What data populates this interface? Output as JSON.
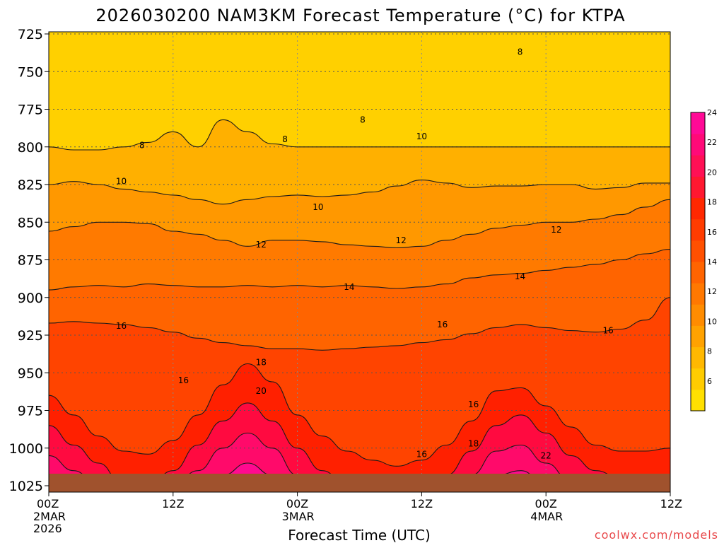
{
  "chart_data": {
    "type": "heatmap",
    "title": "2026030200 NAM3KM Forecast Temperature (°C) for KTPA",
    "xlabel": "Forecast Time (UTC)",
    "ylabel": "",
    "x_ticks": [
      {
        "hour": 0,
        "label": "00Z",
        "sub": [
          "2MAR",
          "2026"
        ]
      },
      {
        "hour": 12,
        "label": "12Z",
        "sub": []
      },
      {
        "hour": 24,
        "label": "00Z",
        "sub": [
          "3MAR"
        ]
      },
      {
        "hour": 36,
        "label": "12Z",
        "sub": []
      },
      {
        "hour": 48,
        "label": "00Z",
        "sub": [
          "4MAR"
        ]
      },
      {
        "hour": 60,
        "label": "12Z",
        "sub": []
      }
    ],
    "xlim": [
      0,
      60
    ],
    "y_levels": [
      725,
      750,
      775,
      800,
      825,
      850,
      875,
      900,
      925,
      950,
      975,
      1000,
      1025
    ],
    "ylim_hpa": [
      725,
      1025
    ],
    "grid": "dotted",
    "colorbar": {
      "ticks": [
        6,
        8,
        10,
        12,
        14,
        16,
        18,
        20,
        22,
        24
      ],
      "colors": [
        "#ffe000",
        "#ffcc00",
        "#ffb800",
        "#ffa200",
        "#ff8c00",
        "#ff7800",
        "#ff6400",
        "#ff5000",
        "#ff3c00",
        "#ff2800",
        "#ff1830",
        "#ff1055",
        "#ff0a78",
        "#ff0a96"
      ]
    },
    "contours": [
      {
        "value": 8,
        "label": "8",
        "pressure": [
          800,
          802,
          802,
          800,
          797,
          790,
          800,
          782,
          790,
          798,
          800,
          800,
          800,
          800,
          800,
          800,
          800,
          800,
          800,
          800,
          800,
          800,
          800,
          800,
          800,
          800
        ]
      },
      {
        "value": 10,
        "label": "10",
        "pressure": [
          825,
          823,
          825,
          828,
          830,
          832,
          835,
          838,
          835,
          833,
          832,
          833,
          832,
          830,
          826,
          822,
          824,
          827,
          826,
          826,
          825,
          825,
          828,
          827,
          824,
          824
        ]
      },
      {
        "value": 12,
        "label": "12",
        "pressure": [
          856,
          853,
          850,
          850,
          851,
          856,
          858,
          862,
          866,
          862,
          862,
          863,
          865,
          866,
          867,
          866,
          862,
          858,
          854,
          852,
          850,
          850,
          848,
          845,
          840,
          835
        ]
      },
      {
        "value": 14,
        "label": "14",
        "pressure": [
          895,
          893,
          892,
          893,
          891,
          892,
          893,
          893,
          892,
          893,
          892,
          893,
          892,
          893,
          894,
          893,
          891,
          887,
          885,
          884,
          882,
          880,
          878,
          875,
          871,
          868
        ]
      },
      {
        "value": 16,
        "label": "16",
        "pressure": [
          917,
          916,
          917,
          918,
          920,
          923,
          927,
          930,
          932,
          934,
          934,
          935,
          934,
          933,
          932,
          930,
          928,
          924,
          920,
          918,
          920,
          922,
          923,
          921,
          915,
          900
        ]
      },
      {
        "value": 18,
        "label": "18",
        "pressure": [
          965,
          978,
          992,
          1002,
          1004,
          995,
          978,
          958,
          944,
          956,
          978,
          992,
          1002,
          1008,
          1012,
          1008,
          998,
          982,
          962,
          960,
          972,
          986,
          998,
          1002,
          1002,
          1000
        ]
      },
      {
        "value": 20,
        "label": "20",
        "pressure": [
          985,
          998,
          1010,
          1025,
          1025,
          1015,
          998,
          982,
          970,
          982,
          1000,
          1015,
          1025,
          1025,
          1025,
          1025,
          1018,
          1002,
          985,
          978,
          990,
          1005,
          1015,
          1020,
          1020,
          1018
        ]
      },
      {
        "value": 22,
        "label": "22",
        "pressure": [
          1005,
          1015,
          1025,
          1025,
          1025,
          1025,
          1015,
          1000,
          990,
          1000,
          1018,
          1025,
          1025,
          1025,
          1025,
          1025,
          1025,
          1018,
          1002,
          998,
          1010,
          1022,
          1025,
          1025,
          1025,
          1025
        ]
      },
      {
        "value": 24,
        "label": "",
        "pressure": [
          1020,
          1025,
          1025,
          1025,
          1025,
          1025,
          1025,
          1018,
          1010,
          1018,
          1025,
          1025,
          1025,
          1025,
          1025,
          1025,
          1025,
          1025,
          1018,
          1015,
          1025,
          1025,
          1025,
          1025,
          1025,
          1025
        ]
      }
    ],
    "contour_labels": [
      {
        "text": "8",
        "hour": 9.0,
        "pressure": 799
      },
      {
        "text": "8",
        "hour": 22.8,
        "pressure": 795
      },
      {
        "text": "8",
        "hour": 30.3,
        "pressure": 782
      },
      {
        "text": "10",
        "hour": 36.0,
        "pressure": 793
      },
      {
        "text": "8",
        "hour": 45.5,
        "pressure": 737
      },
      {
        "text": "10",
        "hour": 7.0,
        "pressure": 823
      },
      {
        "text": "10",
        "hour": 26.0,
        "pressure": 840
      },
      {
        "text": "12",
        "hour": 20.5,
        "pressure": 865
      },
      {
        "text": "12",
        "hour": 34.0,
        "pressure": 862
      },
      {
        "text": "12",
        "hour": 49.0,
        "pressure": 855
      },
      {
        "text": "14",
        "hour": 29.0,
        "pressure": 893
      },
      {
        "text": "14",
        "hour": 45.5,
        "pressure": 886
      },
      {
        "text": "16",
        "hour": 7.0,
        "pressure": 919
      },
      {
        "text": "16",
        "hour": 13.0,
        "pressure": 955
      },
      {
        "text": "16",
        "hour": 38.0,
        "pressure": 918
      },
      {
        "text": "16",
        "hour": 41.0,
        "pressure": 971
      },
      {
        "text": "16",
        "hour": 36.0,
        "pressure": 1004
      },
      {
        "text": "16",
        "hour": 54.0,
        "pressure": 922
      },
      {
        "text": "18",
        "hour": 20.5,
        "pressure": 943
      },
      {
        "text": "18",
        "hour": 41.0,
        "pressure": 997
      },
      {
        "text": "20",
        "hour": 20.5,
        "pressure": 962
      },
      {
        "text": "22",
        "hour": 48.0,
        "pressure": 1005
      }
    ],
    "ground_pressure": 1017
  },
  "credit": "coolwx.com/models"
}
